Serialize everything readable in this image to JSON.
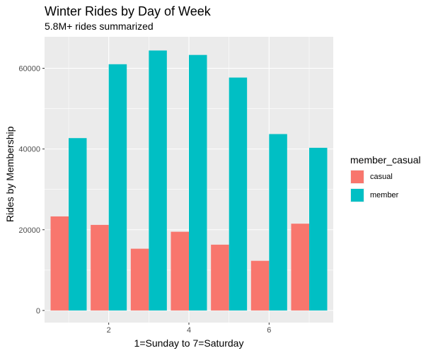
{
  "chart_data": {
    "type": "bar",
    "title": "Winter Rides by Day of Week",
    "subtitle": "5.8M+ rides summarized",
    "xlabel": "1=Sunday to 7=Saturday",
    "ylabel": "Rides by Membership",
    "x": [
      1,
      2,
      3,
      4,
      5,
      6,
      7
    ],
    "x_ticks": [
      "2",
      "4",
      "6"
    ],
    "y_ticks": [
      "0",
      "20000",
      "40000",
      "60000"
    ],
    "ylim": [
      -3000,
      67800
    ],
    "xlim": [
      0.4,
      7.6
    ],
    "grid": true,
    "legend_title": "member_casual",
    "legend_position": "right",
    "series": [
      {
        "name": "casual",
        "color": "#f8766d",
        "values": [
          23300,
          21200,
          15300,
          19500,
          16300,
          12300,
          21500
        ]
      },
      {
        "name": "member",
        "color": "#00bfc4",
        "values": [
          42700,
          61000,
          64400,
          63300,
          57700,
          43700,
          40300
        ]
      }
    ]
  }
}
